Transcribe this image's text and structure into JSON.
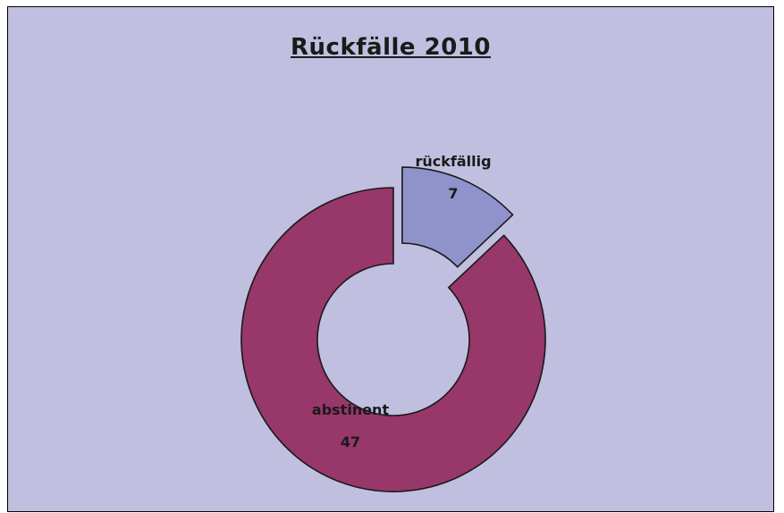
{
  "chart_data": {
    "type": "pie",
    "variant": "donut-exploded",
    "title": "Rückfälle 2010",
    "slices": [
      {
        "name": "abstinent",
        "value": 47,
        "color": "#97376a"
      },
      {
        "name": "rückfällig",
        "value": 7,
        "color": "#8f92cb"
      }
    ],
    "data_labels": "name and value inside slice",
    "legend": "none",
    "background_color": "#c0bfe0"
  }
}
